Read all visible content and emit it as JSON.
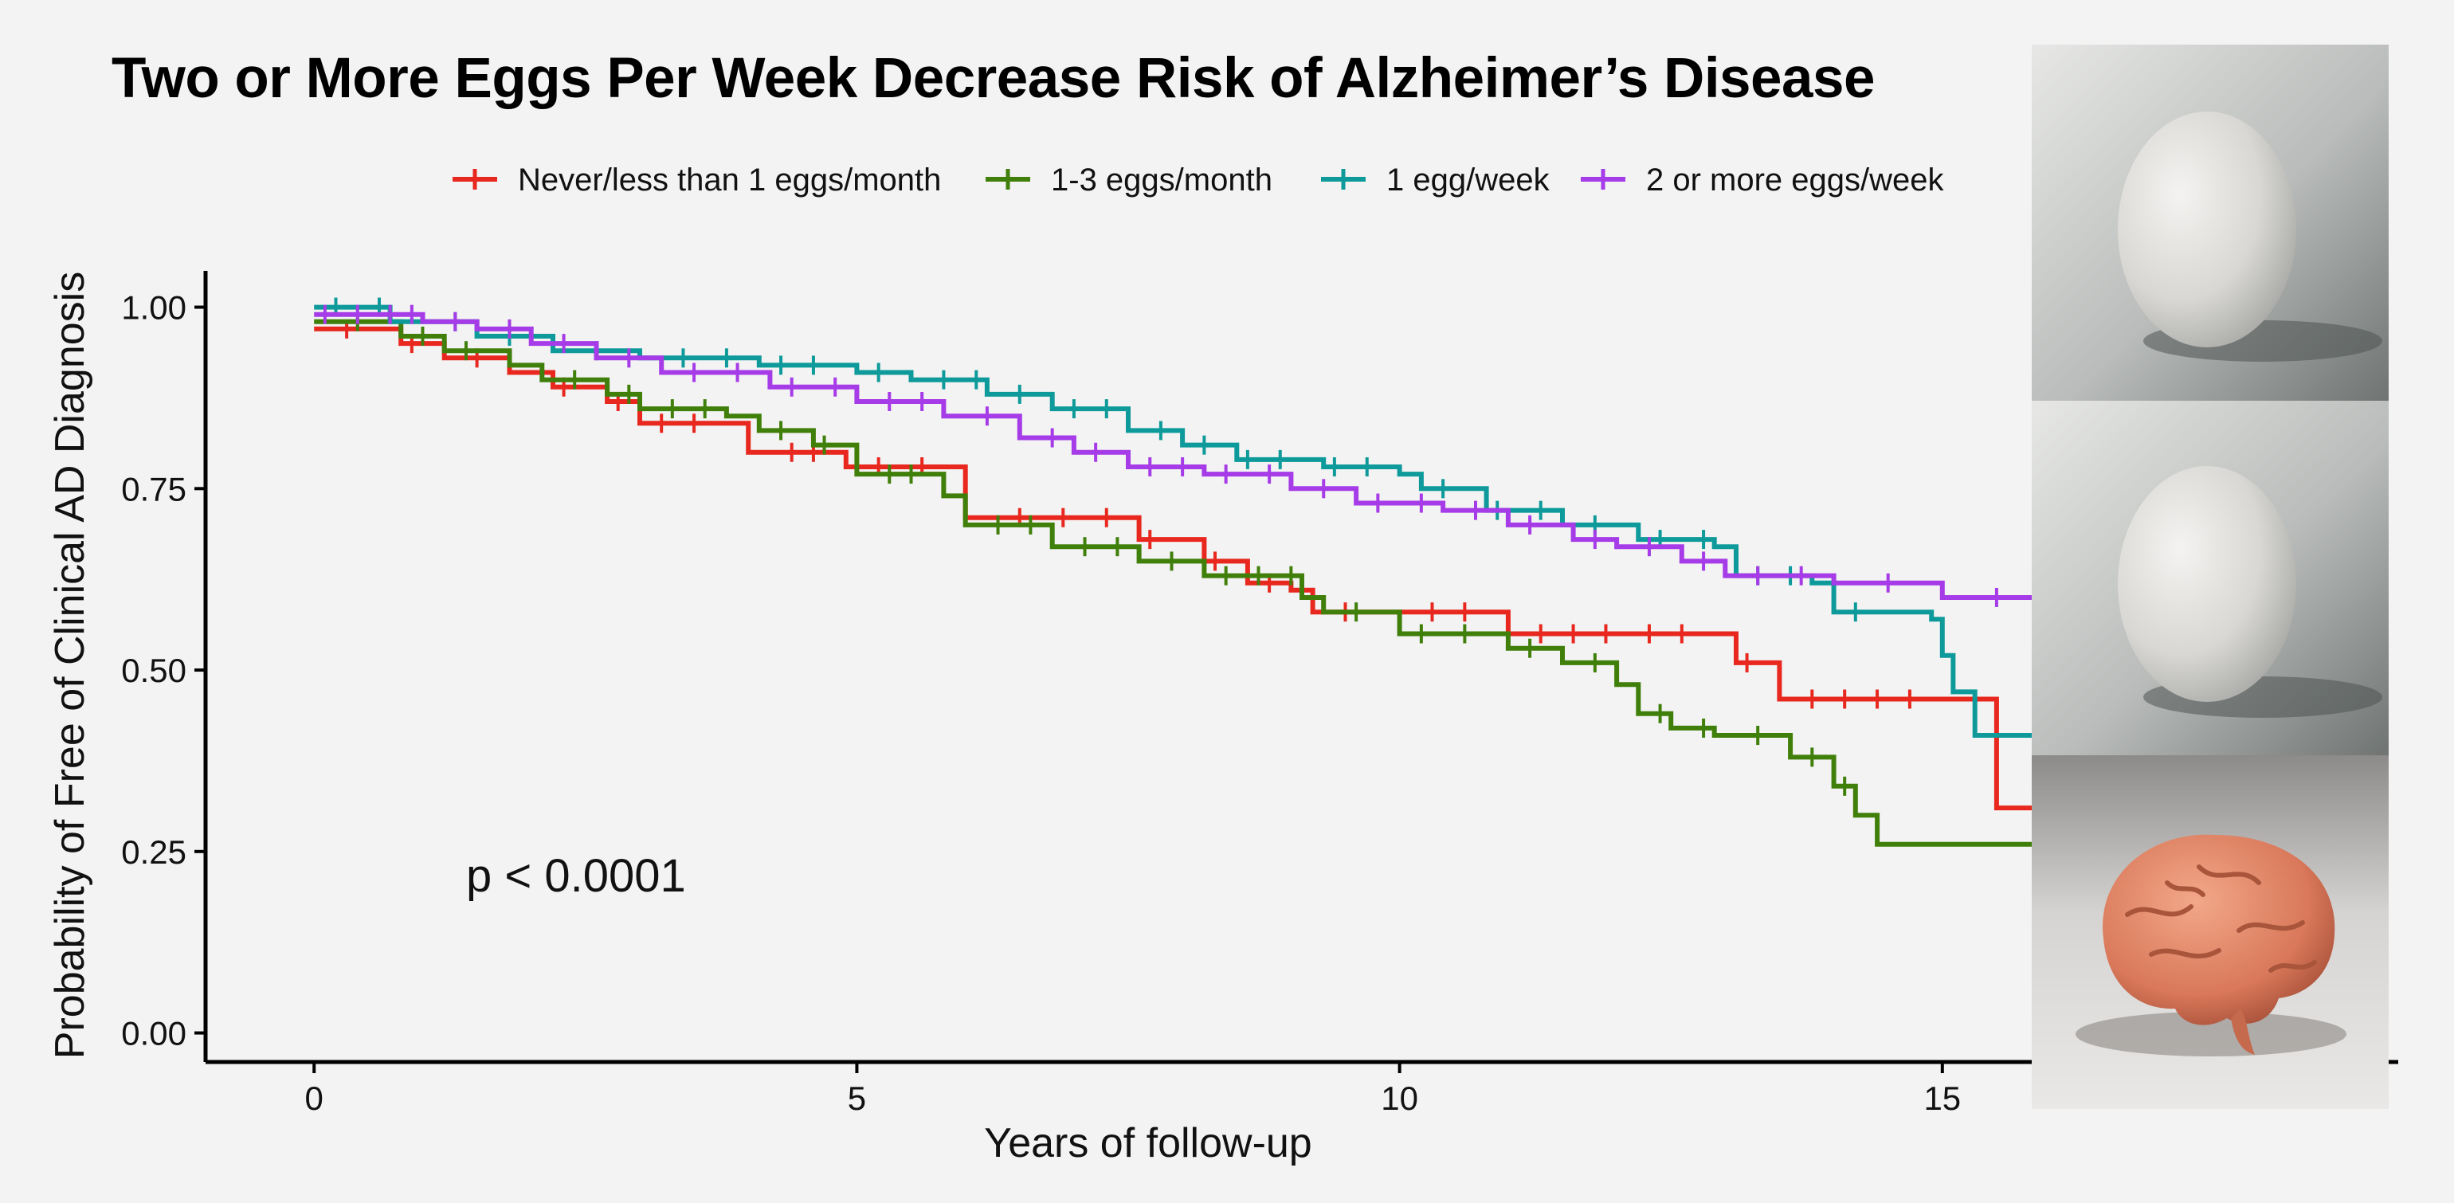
{
  "title": "Two or More Eggs Per Week Decrease Risk of Alzheimer’s Disease",
  "pvalue_label": "p < 0.0001",
  "colors": {
    "never": "#e8281e",
    "m13": "#3f7f0a",
    "week1": "#0e9a9a",
    "week2plus": "#a63be8",
    "arrow": "#d40000"
  },
  "images": [
    {
      "subject": "egg-icon"
    },
    {
      "subject": "egg-icon"
    },
    {
      "subject": "brain-icon"
    }
  ],
  "chart_data": {
    "type": "line",
    "title": "",
    "xlabel": "Years of follow-up",
    "ylabel": "Probability of Free of Clinical AD Diagnosis",
    "xlim": [
      -1,
      19.2
    ],
    "ylim": [
      -0.04,
      1.05
    ],
    "xticks": [
      0,
      5,
      10,
      15
    ],
    "yticks": [
      0.0,
      0.25,
      0.5,
      0.75,
      1.0
    ],
    "ytick_labels": [
      "0.00",
      "0.25",
      "0.50",
      "0.75",
      "1.00"
    ],
    "grid": false,
    "legend_position": "top",
    "series": [
      {
        "name": "Never/less than 1 eggs/month",
        "color_key": "never",
        "steps": [
          [
            0,
            0.97
          ],
          [
            0.8,
            0.95
          ],
          [
            1.2,
            0.93
          ],
          [
            1.8,
            0.91
          ],
          [
            2.2,
            0.89
          ],
          [
            2.7,
            0.87
          ],
          [
            3.0,
            0.84
          ],
          [
            4.0,
            0.8
          ],
          [
            4.9,
            0.78
          ],
          [
            6.0,
            0.71
          ],
          [
            7.6,
            0.68
          ],
          [
            8.2,
            0.65
          ],
          [
            8.6,
            0.62
          ],
          [
            9.0,
            0.61
          ],
          [
            9.2,
            0.58
          ],
          [
            10.1,
            0.58
          ],
          [
            11.0,
            0.55
          ],
          [
            12.9,
            0.55
          ],
          [
            13.1,
            0.51
          ],
          [
            13.5,
            0.46
          ],
          [
            15.0,
            0.46
          ],
          [
            15.5,
            0.31
          ],
          [
            17.0,
            0.31
          ]
        ],
        "end": 17.3,
        "censors": [
          0.3,
          0.9,
          1.5,
          2.3,
          2.8,
          3.2,
          3.5,
          4.4,
          4.6,
          5.2,
          5.6,
          6.5,
          6.9,
          7.3,
          7.7,
          8.3,
          8.8,
          9.5,
          10.3,
          10.6,
          11.3,
          11.6,
          11.9,
          12.3,
          12.6,
          13.2,
          13.8,
          14.1,
          14.4,
          14.7,
          16.0,
          17.2
        ]
      },
      {
        "name": "1-3 eggs/month",
        "color_key": "m13",
        "steps": [
          [
            0,
            0.98
          ],
          [
            0.8,
            0.96
          ],
          [
            1.2,
            0.94
          ],
          [
            1.8,
            0.92
          ],
          [
            2.1,
            0.9
          ],
          [
            2.7,
            0.88
          ],
          [
            3.0,
            0.86
          ],
          [
            3.8,
            0.85
          ],
          [
            4.1,
            0.83
          ],
          [
            4.6,
            0.81
          ],
          [
            5.0,
            0.77
          ],
          [
            5.8,
            0.74
          ],
          [
            6.0,
            0.7
          ],
          [
            6.8,
            0.67
          ],
          [
            7.6,
            0.65
          ],
          [
            8.2,
            0.63
          ],
          [
            9.1,
            0.6
          ],
          [
            9.3,
            0.58
          ],
          [
            10.0,
            0.55
          ],
          [
            11.0,
            0.53
          ],
          [
            11.5,
            0.51
          ],
          [
            12.0,
            0.48
          ],
          [
            12.2,
            0.44
          ],
          [
            12.5,
            0.42
          ],
          [
            12.9,
            0.41
          ],
          [
            13.6,
            0.38
          ],
          [
            14.0,
            0.34
          ],
          [
            14.2,
            0.3
          ],
          [
            14.4,
            0.26
          ],
          [
            17.0,
            0.26
          ]
        ],
        "end": 17.3,
        "censors": [
          0.4,
          1.0,
          1.4,
          2.4,
          2.9,
          3.3,
          3.6,
          4.3,
          4.7,
          5.3,
          5.5,
          6.3,
          6.6,
          7.1,
          7.4,
          7.9,
          8.4,
          8.7,
          9.0,
          9.6,
          10.2,
          10.6,
          11.2,
          11.8,
          12.4,
          12.8,
          13.3,
          13.8,
          14.1,
          16.7,
          17.2
        ]
      },
      {
        "name": "1 egg/week",
        "color_key": "week1",
        "steps": [
          [
            0,
            1.0
          ],
          [
            0.7,
            0.98
          ],
          [
            1.5,
            0.96
          ],
          [
            2.2,
            0.94
          ],
          [
            3.0,
            0.93
          ],
          [
            4.1,
            0.92
          ],
          [
            5.0,
            0.91
          ],
          [
            5.5,
            0.9
          ],
          [
            6.2,
            0.88
          ],
          [
            6.8,
            0.86
          ],
          [
            7.5,
            0.83
          ],
          [
            8.0,
            0.81
          ],
          [
            8.5,
            0.79
          ],
          [
            9.3,
            0.78
          ],
          [
            10.0,
            0.77
          ],
          [
            10.2,
            0.75
          ],
          [
            10.8,
            0.72
          ],
          [
            11.5,
            0.7
          ],
          [
            12.2,
            0.68
          ],
          [
            12.9,
            0.67
          ],
          [
            13.1,
            0.63
          ],
          [
            13.8,
            0.62
          ],
          [
            14.0,
            0.58
          ],
          [
            14.9,
            0.57
          ],
          [
            15.0,
            0.52
          ],
          [
            15.1,
            0.47
          ],
          [
            15.3,
            0.41
          ],
          [
            15.9,
            0.37
          ],
          [
            17.0,
            0.37
          ]
        ],
        "end": 17.3,
        "censors": [
          0.2,
          0.6,
          1.3,
          1.8,
          2.6,
          3.4,
          3.8,
          4.3,
          4.6,
          5.2,
          5.8,
          6.1,
          6.5,
          7.0,
          7.3,
          7.8,
          8.2,
          8.6,
          8.9,
          9.4,
          9.7,
          10.4,
          10.9,
          11.3,
          11.8,
          12.4,
          12.8,
          13.3,
          13.6,
          14.2,
          16.2,
          16.5,
          16.8,
          17.1
        ]
      },
      {
        "name": "2 or more eggs/week",
        "color_key": "week2plus",
        "steps": [
          [
            0,
            0.99
          ],
          [
            1.0,
            0.98
          ],
          [
            1.5,
            0.97
          ],
          [
            2.0,
            0.95
          ],
          [
            2.6,
            0.93
          ],
          [
            3.2,
            0.91
          ],
          [
            4.2,
            0.89
          ],
          [
            5.0,
            0.87
          ],
          [
            5.8,
            0.85
          ],
          [
            6.5,
            0.82
          ],
          [
            7.0,
            0.8
          ],
          [
            7.5,
            0.78
          ],
          [
            8.2,
            0.77
          ],
          [
            9.0,
            0.75
          ],
          [
            9.6,
            0.73
          ],
          [
            10.4,
            0.72
          ],
          [
            11.0,
            0.7
          ],
          [
            11.6,
            0.68
          ],
          [
            12.0,
            0.67
          ],
          [
            12.6,
            0.65
          ],
          [
            13.0,
            0.63
          ],
          [
            14.0,
            0.62
          ],
          [
            15.0,
            0.6
          ],
          [
            16.0,
            0.58
          ],
          [
            16.3,
            0.56
          ],
          [
            16.6,
            0.54
          ],
          [
            16.8,
            0.52
          ],
          [
            17.0,
            0.52
          ]
        ],
        "end": 17.5,
        "censors": [
          0.1,
          0.4,
          0.7,
          0.9,
          1.3,
          1.8,
          2.3,
          2.9,
          3.5,
          3.9,
          4.4,
          4.8,
          5.3,
          5.6,
          6.2,
          6.8,
          7.2,
          7.7,
          8.0,
          8.4,
          8.8,
          9.3,
          9.8,
          10.2,
          10.7,
          11.2,
          11.8,
          12.3,
          12.8,
          13.3,
          13.7,
          14.5,
          15.5,
          16.9,
          17.1,
          17.3,
          17.4
        ]
      }
    ],
    "annotation": {
      "text": "p < 0.0001",
      "x": 1.4,
      "y": 0.195
    },
    "arrow_marker": {
      "x": 16.7,
      "y_from": 1.12,
      "y_to": 0.56
    }
  }
}
